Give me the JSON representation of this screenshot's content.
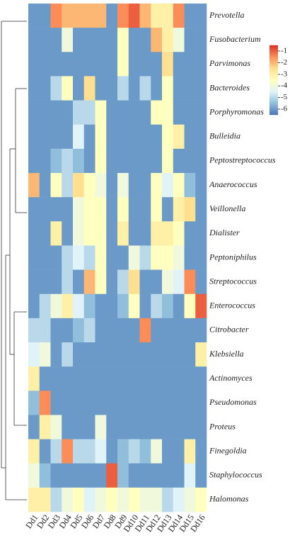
{
  "chart_data": {
    "type": "heatmap",
    "rows": [
      "Prevotella",
      "Fusobacterium",
      "Parvimonas",
      "Bacteroides",
      "Porphyromonas",
      "Bulleidia",
      "Peptostreptococcus",
      "Anaerococcus",
      "Veillonella",
      "Dialister",
      "Peptoniphilus",
      "Streptococcus",
      "Enterococcus",
      "Citrobacter",
      "Klebsiella",
      "Actinomyces",
      "Pseudomonas",
      "Proteus",
      "Finegoldia",
      "Staphylococcus",
      "Halomonas"
    ],
    "columns": [
      "Dd1",
      "Dd2",
      "Dd3",
      "Dd4",
      "Dd5",
      "Dd6",
      "Dd7",
      "Dd8",
      "Dd9",
      "Dd10",
      "Dd11",
      "Dd12",
      "Dd13",
      "Dd14",
      "Dd15",
      "Dd16"
    ],
    "values": [
      [
        -6,
        -6,
        -1.5,
        -2,
        -2,
        -2,
        -2,
        -6,
        -1.5,
        -1,
        -2,
        -3,
        -3,
        -1.5,
        -6,
        -6
      ],
      [
        -6,
        -6,
        -6,
        -4,
        -6,
        -6,
        -6,
        -6,
        -3.5,
        -6,
        -6,
        -2,
        -3,
        -4,
        -6,
        -6
      ],
      [
        -6,
        -6,
        -6,
        -6,
        -6,
        -6,
        -6,
        -6,
        -3.5,
        -6,
        -6,
        -6,
        -2.5,
        -6,
        -6,
        -6
      ],
      [
        -6,
        -6,
        -5,
        -3.5,
        -6,
        -2.5,
        -6,
        -6,
        -5,
        -6,
        -5,
        -6,
        -3.5,
        -6,
        -6,
        -6
      ],
      [
        -6,
        -6,
        -6,
        -6,
        -5,
        -5,
        -3.5,
        -6,
        -6,
        -6,
        -6,
        -3.5,
        -3.5,
        -6,
        -6,
        -6
      ],
      [
        -6,
        -6,
        -6,
        -6,
        -4.5,
        -6,
        -3.5,
        -6,
        -6,
        -6,
        -6,
        -6,
        -3.5,
        -3,
        -6,
        -6
      ],
      [
        -6,
        -6,
        -5.5,
        -5,
        -5.5,
        -6,
        -3.5,
        -6,
        -6,
        -6,
        -6,
        -6,
        -3.5,
        -6,
        -6,
        -6
      ],
      [
        -2,
        -6,
        -3.5,
        -5,
        -2.5,
        -3.5,
        -4,
        -6,
        -4,
        -6,
        -6,
        -3.5,
        -4.5,
        -3.5,
        -5.5,
        -6
      ],
      [
        -6,
        -6,
        -6,
        -6,
        -4,
        -3.5,
        -3.5,
        -6,
        -3.5,
        -6,
        -6,
        -3.5,
        -6,
        -3,
        -2.5,
        -6
      ],
      [
        -6,
        -6,
        -3,
        -6,
        -4,
        -3.5,
        -3.5,
        -6,
        -3,
        -6,
        -6,
        -3,
        -3,
        -3.5,
        -6,
        -6
      ],
      [
        -6,
        -6,
        -6,
        -5,
        -4.5,
        -5,
        -3.5,
        -6,
        -6,
        -4,
        -5,
        -3.5,
        -3.5,
        -4,
        -6,
        -6
      ],
      [
        -6,
        -6,
        -6,
        -5,
        -6,
        -2,
        -3.5,
        -6,
        -5,
        -2.5,
        -6,
        -6,
        -4,
        -4.5,
        -1.5,
        -6
      ],
      [
        -6,
        -5,
        -4,
        -3,
        -4.5,
        -5.5,
        -6,
        -6,
        -5.5,
        -3.5,
        -6,
        -5,
        -5.5,
        -6,
        -3.5,
        -1
      ],
      [
        -5,
        -5,
        -6,
        -6,
        -5.5,
        -5,
        -6,
        -6,
        -6,
        -6,
        -1.5,
        -6,
        -6,
        -6,
        -6,
        -6
      ],
      [
        -4.5,
        -4,
        -6,
        -5,
        -6,
        -6,
        -6,
        -6,
        -6,
        -6,
        -6,
        -6,
        -6,
        -6,
        -6,
        -3
      ],
      [
        -3,
        -6,
        -6,
        -6,
        -6,
        -6,
        -6,
        -6,
        -6,
        -6,
        -6,
        -6,
        -6,
        -6,
        -6,
        -6
      ],
      [
        -5.5,
        -1.5,
        -6,
        -6,
        -6,
        -6,
        -6,
        -6,
        -6,
        -6,
        -6,
        -6,
        -6,
        -6,
        -6,
        -6
      ],
      [
        -6,
        -3,
        -4,
        -6,
        -6,
        -6,
        -4,
        -6,
        -6,
        -6,
        -6,
        -6,
        -6,
        -6,
        -6,
        -6
      ],
      [
        -3,
        -6,
        -5,
        -1.5,
        -5,
        -5,
        -4.5,
        -6,
        -5.5,
        -5,
        -5.5,
        -4,
        -6,
        -6,
        -3,
        -6
      ],
      [
        -4,
        -5.5,
        -6,
        -6,
        -6,
        -6,
        -6,
        -1,
        -5.5,
        -6,
        -6,
        -6,
        -6,
        -6,
        -4.5,
        -6
      ],
      [
        -3,
        -3,
        -5,
        -4,
        -3.5,
        -4.5,
        -4,
        -3.5,
        -4,
        -3.5,
        -4,
        -4,
        -5,
        -4.5,
        -4,
        -3.5
      ]
    ],
    "colors": [
      "#4575b4",
      "#91bfdb",
      "#e0f3f8",
      "#ffffbf",
      "#fee090",
      "#fc8d59",
      "#d73027"
    ],
    "clim": [
      -6.5,
      -0.5
    ],
    "cticks": [
      -1,
      -2,
      -3,
      -4,
      -5,
      -6
    ]
  }
}
